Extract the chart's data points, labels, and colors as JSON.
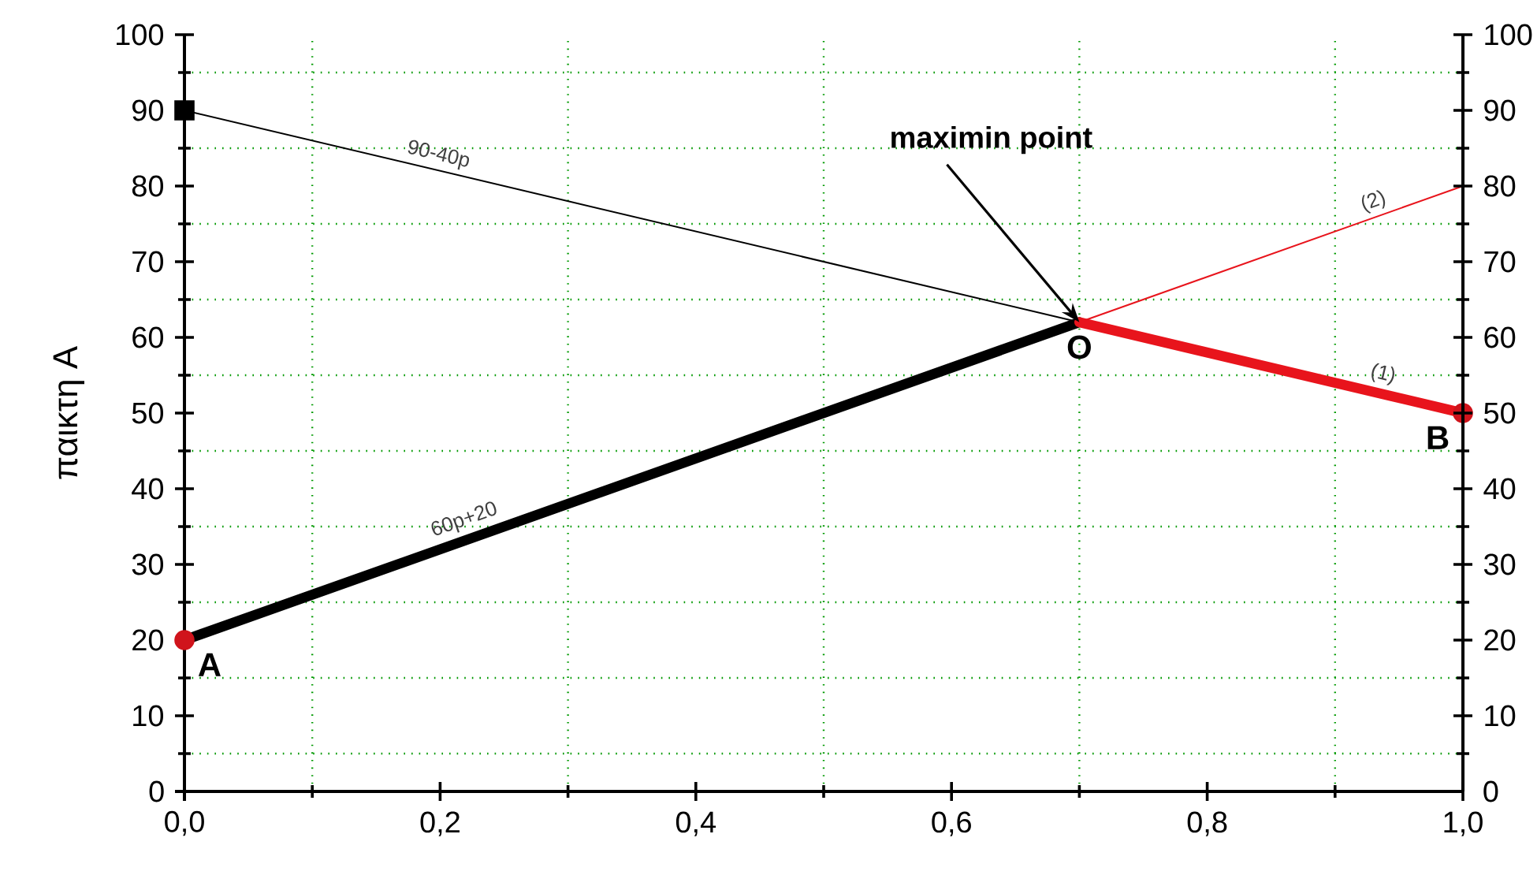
{
  "chart_data": {
    "type": "line",
    "ylabel": "παικτη A",
    "xlim": [
      0,
      1
    ],
    "ylim": [
      0,
      100
    ],
    "y2lim": [
      0,
      100
    ],
    "xticks": [
      {
        "value": 0,
        "label": "0,0"
      },
      {
        "value": 0.1,
        "label": null
      },
      {
        "value": 0.2,
        "label": "0,2"
      },
      {
        "value": 0.3,
        "label": null
      },
      {
        "value": 0.4,
        "label": "0,4"
      },
      {
        "value": 0.5,
        "label": null
      },
      {
        "value": 0.6,
        "label": "0,6"
      },
      {
        "value": 0.7,
        "label": null
      },
      {
        "value": 0.8,
        "label": "0,8"
      },
      {
        "value": 0.9,
        "label": null
      },
      {
        "value": 1,
        "label": "1,0"
      }
    ],
    "yticks": [
      0,
      {
        "value": 5,
        "label": null
      },
      10,
      {
        "value": 15,
        "label": null
      },
      20,
      {
        "value": 25,
        "label": null
      },
      30,
      {
        "value": 35,
        "label": null
      },
      40,
      {
        "value": 45,
        "label": null
      },
      50,
      {
        "value": 55,
        "label": null
      },
      60,
      {
        "value": 65,
        "label": null
      },
      70,
      {
        "value": 75,
        "label": null
      },
      80,
      {
        "value": 85,
        "label": null
      },
      90,
      {
        "value": 95,
        "label": null
      },
      100
    ],
    "y2ticks": [
      0,
      {
        "value": 5,
        "label": null
      },
      10,
      {
        "value": 15,
        "label": null
      },
      20,
      {
        "value": 25,
        "label": null
      },
      30,
      {
        "value": 35,
        "label": null
      },
      40,
      {
        "value": 45,
        "label": null
      },
      50,
      {
        "value": 55,
        "label": null
      },
      60,
      {
        "value": 65,
        "label": null
      },
      70,
      {
        "value": 75,
        "label": null
      },
      80,
      {
        "value": 85,
        "label": null
      },
      90,
      {
        "value": 95,
        "label": null
      },
      100
    ],
    "grid": true,
    "marker": "none",
    "line_style": "solid",
    "series": [
      {
        "name": "90-40p",
        "color": "#000000",
        "x": [
          0,
          0.7
        ],
        "values": [
          90,
          62
        ]
      },
      {
        "name": "60p+20",
        "color": "#000000",
        "x": [
          0,
          0.7
        ],
        "values": [
          20,
          62
        ]
      },
      {
        "name": "(1)",
        "color": "#e8141c",
        "x": [
          0.7,
          1
        ],
        "values": [
          62,
          50
        ]
      },
      {
        "name": "(2)",
        "color": "#e8141c",
        "x": [
          0.7,
          1
        ],
        "values": [
          62,
          80
        ]
      },
      {
        "type": "scatter",
        "marker": "square",
        "color": "#000000",
        "x": [
          0
        ],
        "values": [
          90
        ]
      },
      {
        "type": "scatter",
        "marker": "circle",
        "color": "#d0141c",
        "x": [
          0,
          1
        ],
        "values": [
          20,
          50
        ]
      }
    ],
    "annotations": [
      {
        "text": "maximin point",
        "x": 0.7,
        "y": 62
      },
      {
        "text": "O",
        "x": 0.7,
        "y": 62
      },
      {
        "text": "A",
        "x": 0,
        "y": 20
      },
      {
        "text": "B",
        "x": 1,
        "y": 50
      }
    ]
  }
}
